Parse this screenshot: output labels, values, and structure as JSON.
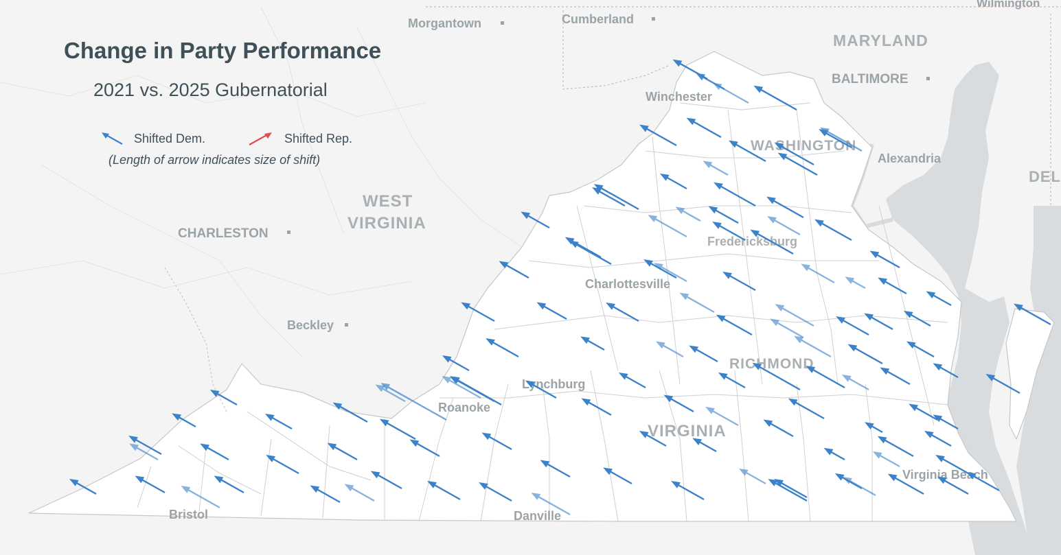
{
  "title": "Change in Party Performance",
  "subtitle": "2021 vs. 2025 Gubernatorial",
  "legend": {
    "dem_label": "Shifted Dem.",
    "rep_label": "Shifted Rep.",
    "note": "(Length of arrow indicates size of shift)",
    "dem_color": "#3b82c9",
    "rep_color": "#d94f4f"
  },
  "map": {
    "land_color": "#ffffff",
    "background_color": "#f4f4f4",
    "water_color": "#d9dcde",
    "county_border_color": "#cfcfcf",
    "state_labels": [
      "MARYLAND",
      "WEST",
      "VIRGINIA",
      "DEL",
      "VIRGINIA"
    ],
    "places": [
      "Morgantown",
      "Cumberland",
      "Wilmington",
      "BALTIMORE",
      "Winchester",
      "WASHINGTON",
      "Alexandria",
      "CHARLESTON",
      "Fredericksburg",
      "Charlottesville",
      "Beckley",
      "RICHMOND",
      "Lynchburg",
      "Roanoke",
      "Bristol",
      "Danville",
      "Virginia Beach"
    ]
  },
  "arrows": {
    "direction": "Shifted Dem.",
    "count": 178
  }
}
